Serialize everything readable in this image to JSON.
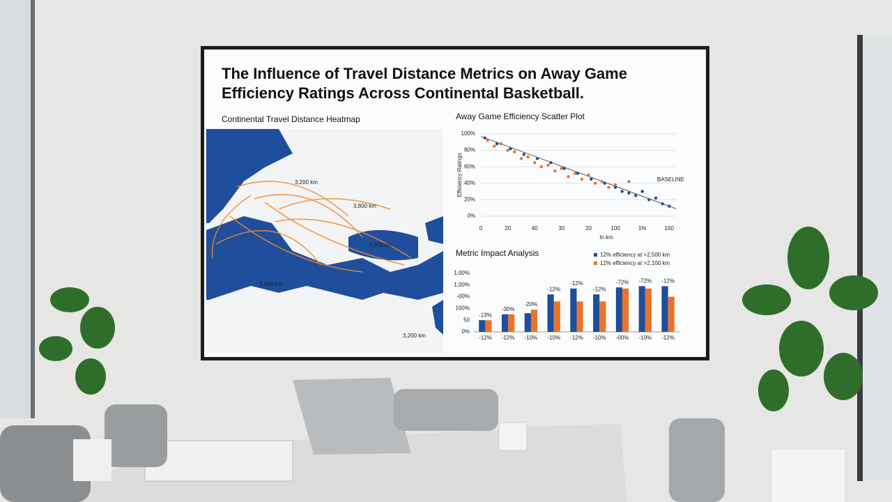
{
  "screen": {
    "title": "The Influence of Travel Distance Metrics on Away Game Efficiency Ratings Across Continental Basketball."
  },
  "map": {
    "title": "Continental Travel Distance Heatmap",
    "labels": [
      "3,200 km",
      "3,800 km",
      "5,800 km",
      "3,800 km",
      "3,200 km"
    ]
  },
  "chart_data": [
    {
      "type": "scatter",
      "title": "Away Game Efficiency Scatter Plot",
      "y_label": "Efficiency Ratings",
      "x_label": "In km",
      "annotation": "BASELINE",
      "xlim": [
        0,
        145
      ],
      "ylim": [
        0,
        100
      ],
      "xticks": [
        0,
        20,
        40,
        {
          "value": 60,
          "label": "30"
        },
        {
          "value": 80,
          "label": "20"
        },
        100,
        {
          "value": 120,
          "label": "1%"
        },
        {
          "value": 140,
          "label": "150"
        }
      ],
      "yticks": [
        {
          "value": 0,
          "label": "0%"
        },
        {
          "value": 20,
          "label": "20%"
        },
        {
          "value": 40,
          "label": "40%"
        },
        {
          "value": 60,
          "label": "60%"
        },
        {
          "value": 80,
          "label": "80%"
        },
        {
          "value": 100,
          "label": "100%"
        }
      ],
      "grid": true,
      "series": [
        {
          "color": "#e8742a",
          "x": [
            5,
            10,
            15,
            20,
            25,
            30,
            35,
            40,
            45,
            50,
            55,
            60,
            65,
            70,
            75,
            80,
            85,
            90,
            95,
            100,
            110,
            120
          ],
          "values": [
            92,
            85,
            88,
            80,
            78,
            70,
            72,
            65,
            60,
            62,
            55,
            58,
            48,
            52,
            45,
            50,
            40,
            42,
            35,
            38,
            42,
            30
          ]
        },
        {
          "color": "#1f4e9c",
          "x": [
            3,
            12,
            22,
            32,
            42,
            52,
            62,
            72,
            82,
            92,
            100,
            105,
            110,
            115,
            120,
            125,
            130,
            135,
            140
          ],
          "values": [
            95,
            88,
            82,
            75,
            70,
            65,
            58,
            52,
            45,
            40,
            35,
            30,
            28,
            25,
            30,
            20,
            22,
            15,
            12
          ]
        }
      ],
      "trend": {
        "x": [
          0,
          145
        ],
        "values": [
          97,
          9
        ],
        "color": "#555555"
      }
    },
    {
      "type": "bar",
      "title": "Metric Impact Analysis",
      "categories": [
        "-12%",
        "-12%",
        "-10%",
        "-10%",
        "-12%",
        "-10%",
        "-00%",
        "-10%",
        "-12%"
      ],
      "annotations": [
        "-13%",
        "-30%",
        "-20%",
        "-12%",
        "-12%",
        "-12%",
        "-72%",
        "-72%",
        "-12%"
      ],
      "ylim": [
        0,
        250
      ],
      "yticks": [
        {
          "value": 0,
          "label": "0%"
        },
        50,
        {
          "value": 100,
          "label": "100%"
        },
        {
          "value": 150,
          "label": "-00%"
        },
        {
          "value": 200,
          "label": "1,00%"
        },
        {
          "value": 250,
          "label": "1,00%"
        }
      ],
      "series": [
        {
          "name": "12% efficiency at >2,500 km",
          "color": "#1f4e9c",
          "values": [
            50,
            75,
            80,
            160,
            185,
            160,
            190,
            195,
            195
          ]
        },
        {
          "name": "12% efficiency at >2,100 km",
          "color": "#e8742a",
          "values": [
            50,
            75,
            95,
            130,
            130,
            130,
            185,
            185,
            150
          ]
        }
      ]
    }
  ]
}
